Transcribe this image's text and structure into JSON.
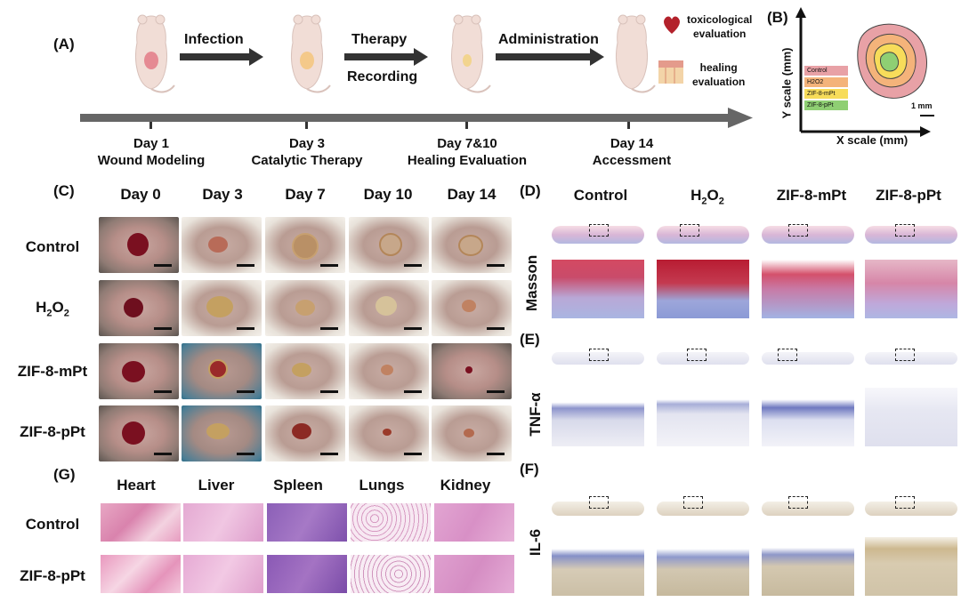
{
  "panelA": {
    "label": "(A)",
    "steps": [
      "Infection",
      "Therapy",
      "Recording",
      "Administration"
    ],
    "eval": {
      "tox": [
        "toxicological",
        "evaluation"
      ],
      "heal": [
        "healing",
        "evaluation"
      ]
    },
    "days": [
      {
        "day": "Day 1",
        "desc": "Wound Modeling"
      },
      {
        "day": "Day 3",
        "desc": "Catalytic Therapy"
      },
      {
        "day": "Day 7&10",
        "desc": "Healing Evaluation"
      },
      {
        "day": "Day 14",
        "desc": "Accessment"
      }
    ]
  },
  "panelB": {
    "label": "(B)",
    "ylabel": "Y scale (mm)",
    "xlabel": "X scale (mm)",
    "scale": "1 mm",
    "legend": [
      "Control",
      "H2O2",
      "ZIF-8-mPt",
      "ZIF-8-pPt"
    ],
    "colors": [
      "#e8a1a6",
      "#f4b37a",
      "#f7dc5a",
      "#8fcf73"
    ]
  },
  "panelC": {
    "label": "(C)",
    "columns": [
      "Day 0",
      "Day 3",
      "Day 7",
      "Day 10",
      "Day 14"
    ],
    "rows": [
      "Control",
      "H2O2",
      "ZIF-8-mPt",
      "ZIF-8-pPt"
    ]
  },
  "panelD": {
    "label": "(D)",
    "stain": "Masson",
    "columns": [
      "Control",
      "H2O2",
      "ZIF-8-mPt",
      "ZIF-8-pPt"
    ]
  },
  "panelE": {
    "label": "(E)",
    "stain": "TNF-α"
  },
  "panelF": {
    "label": "(F)",
    "stain": "IL-6"
  },
  "panelG": {
    "label": "(G)",
    "columns": [
      "Heart",
      "Liver",
      "Spleen",
      "Lungs",
      "Kidney"
    ],
    "rows": [
      "Control",
      "ZIF-8-pPt"
    ]
  }
}
